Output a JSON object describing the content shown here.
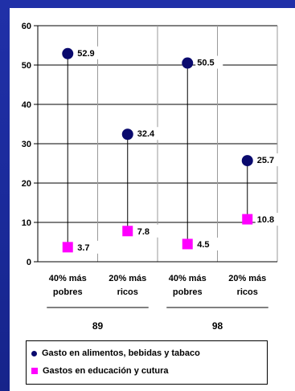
{
  "chart_data": {
    "type": "dot-range",
    "yaxis": {
      "ylim": [
        0,
        60
      ],
      "ticks": [
        "0",
        "10",
        "20",
        "30",
        "40",
        "50",
        "60"
      ]
    },
    "categories": [
      "40% más pobres",
      "20% más ricos",
      "40% más pobres",
      "20% más ricos"
    ],
    "category_lines": [
      [
        "40% más",
        "pobres"
      ],
      [
        "20% más",
        "ricos"
      ],
      [
        "40% más",
        "pobres"
      ],
      [
        "20% más",
        "ricos"
      ]
    ],
    "groups": [
      {
        "label": "89",
        "categories": [
          0,
          1
        ]
      },
      {
        "label": "98",
        "categories": [
          2,
          3
        ]
      }
    ],
    "series": [
      {
        "name": "Gasto en alimentos, bebidas y tabaco",
        "marker": "circle",
        "color": "#0a0a6e",
        "values": [
          52.9,
          32.4,
          50.5,
          25.7
        ],
        "labels": [
          "52.9",
          "32.4",
          "50.5",
          "25.7"
        ]
      },
      {
        "name": "Gastos en educación y cutura",
        "marker": "square",
        "color": "#ff00ff",
        "values": [
          3.7,
          7.8,
          4.5,
          10.8
        ],
        "labels": [
          "3.7",
          "7.8",
          "4.5",
          "10.8"
        ]
      }
    ],
    "grid": true,
    "legend_position": "bottom"
  }
}
